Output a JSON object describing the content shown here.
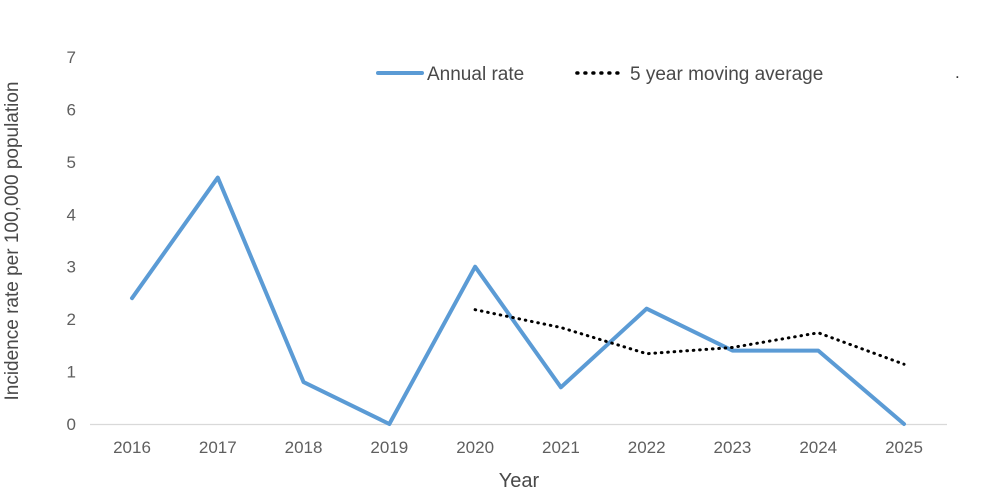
{
  "figure": {
    "background": "#ffffff",
    "axis_line_color": "#d9d9d9",
    "tick_text_color": "#5f5f5f",
    "title_text_color": "#494949"
  },
  "stray_mark": ".",
  "chart_data": {
    "type": "line",
    "title": "",
    "xlabel": "Year",
    "ylabel": "Incidence rate per 100,000 population",
    "categories": [
      "2016",
      "2017",
      "2018",
      "2019",
      "2020",
      "2021",
      "2022",
      "2023",
      "2024",
      "2025"
    ],
    "series": [
      {
        "name": "Annual rate",
        "color": "#5B9BD5",
        "style": "solid",
        "values": [
          2.4,
          4.7,
          0.8,
          0,
          3,
          0.7,
          2.2,
          1.4,
          1.4,
          0
        ]
      },
      {
        "name": "5 year moving average",
        "color": "#000000",
        "style": "dotted",
        "values": [
          null,
          null,
          null,
          null,
          2.18,
          1.84,
          1.34,
          1.46,
          1.74,
          1.14
        ]
      }
    ],
    "ylim": [
      0,
      7
    ],
    "yticks": [
      0,
      1,
      2,
      3,
      4,
      5,
      6,
      7
    ],
    "grid": false,
    "legend_position": "top-center"
  }
}
